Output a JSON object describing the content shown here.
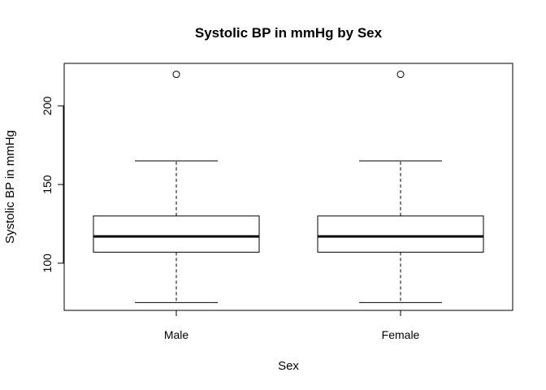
{
  "chart_data": {
    "type": "boxplot",
    "title": "Systolic BP in mmHg by Sex",
    "xlabel": "Sex",
    "ylabel": "Systolic BP in mmHg",
    "ylim": [
      70,
      227
    ],
    "yticks": [
      100,
      150,
      200
    ],
    "categories": [
      "Male",
      "Female"
    ],
    "boxes": [
      {
        "category": "Male",
        "whisker_low": 75,
        "q1": 107,
        "median": 117,
        "q3": 130,
        "whisker_high": 165,
        "outliers": [
          220
        ]
      },
      {
        "category": "Female",
        "whisker_low": 75,
        "q1": 107,
        "median": 117,
        "q3": 130,
        "whisker_high": 165,
        "outliers": [
          220
        ]
      }
    ],
    "grid": false,
    "legend": "none"
  }
}
